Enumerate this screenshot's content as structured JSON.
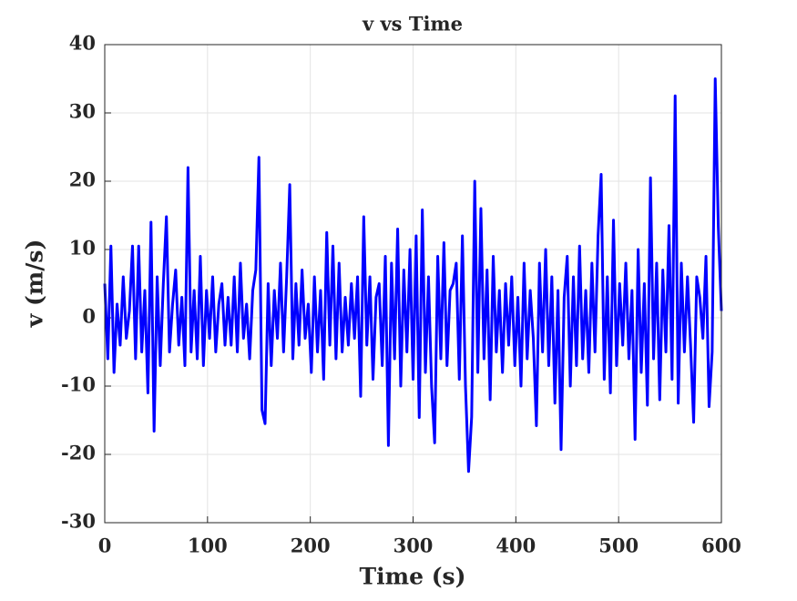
{
  "chart_data": {
    "type": "line",
    "title": "v vs Time",
    "xlabel": "Time (s)",
    "ylabel": "v (m/s)",
    "x": [
      0,
      3,
      6,
      9,
      12,
      15,
      18,
      21,
      24,
      27,
      30,
      33,
      36,
      39,
      42,
      45,
      48,
      51,
      54,
      57,
      60,
      63,
      66,
      69,
      72,
      75,
      78,
      81,
      84,
      87,
      90,
      93,
      96,
      99,
      102,
      105,
      108,
      111,
      114,
      117,
      120,
      123,
      126,
      129,
      132,
      135,
      138,
      141,
      144,
      147,
      150,
      153,
      156,
      159,
      162,
      165,
      168,
      171,
      174,
      177,
      180,
      183,
      186,
      189,
      192,
      195,
      198,
      201,
      204,
      207,
      210,
      213,
      216,
      219,
      222,
      225,
      228,
      231,
      234,
      237,
      240,
      243,
      246,
      249,
      252,
      255,
      258,
      261,
      264,
      267,
      270,
      273,
      276,
      279,
      282,
      285,
      288,
      291,
      294,
      297,
      300,
      303,
      306,
      309,
      312,
      315,
      318,
      321,
      324,
      327,
      330,
      333,
      336,
      339,
      342,
      345,
      348,
      351,
      354,
      357,
      360,
      363,
      366,
      369,
      372,
      375,
      378,
      381,
      384,
      387,
      390,
      393,
      396,
      399,
      402,
      405,
      408,
      411,
      414,
      417,
      420,
      423,
      426,
      429,
      432,
      435,
      438,
      441,
      444,
      447,
      450,
      453,
      456,
      459,
      462,
      465,
      468,
      471,
      474,
      477,
      480,
      483,
      486,
      489,
      492,
      495,
      498,
      501,
      504,
      507,
      510,
      513,
      516,
      519,
      522,
      525,
      528,
      531,
      534,
      537,
      540,
      543,
      546,
      549,
      552,
      555,
      558,
      561,
      564,
      567,
      570,
      573,
      576,
      579,
      582,
      585,
      588,
      591,
      594,
      597,
      600
    ],
    "series": [
      {
        "name": "v",
        "color": "#0000ff",
        "values": [
          5,
          -6,
          10.5,
          -8,
          2,
          -4,
          6,
          -3,
          1,
          10.5,
          -6,
          10.5,
          -5,
          4,
          -11,
          14,
          -16.6,
          6,
          -7,
          5,
          14.8,
          -5,
          2,
          7,
          -4,
          3,
          -7,
          22,
          -5,
          4,
          -6,
          9,
          -7,
          4,
          -3,
          6,
          -5,
          2,
          5,
          -4,
          3,
          -4,
          6,
          -5,
          8,
          -3,
          2,
          -6,
          4,
          7,
          23.5,
          -13.5,
          -15.5,
          5,
          -7,
          4,
          -3,
          8,
          -5,
          6,
          19.5,
          -6,
          5,
          -4,
          7,
          -3,
          2,
          -8,
          6,
          -5,
          4,
          -9,
          12.5,
          -4,
          10.5,
          -6,
          8,
          -5,
          3,
          -4,
          5,
          -3,
          6,
          -11.5,
          14.8,
          -4,
          6,
          -9,
          3,
          5,
          -7,
          9,
          -18.7,
          8,
          -6,
          13,
          -10,
          7,
          -5,
          10,
          -9,
          12,
          -14.6,
          15.8,
          -8,
          6,
          -10,
          -18.3,
          9,
          -6,
          11,
          -7,
          4,
          5,
          8,
          -9,
          12,
          -10,
          -22.5,
          -14.5,
          20,
          -8,
          16,
          -6,
          7,
          -12,
          9,
          -5,
          4,
          -8,
          5,
          -4,
          6,
          -7,
          3,
          -10,
          8,
          -6,
          4,
          -3,
          -15.8,
          8,
          -5,
          10,
          -7,
          6,
          -12.5,
          4,
          -19.3,
          3,
          9,
          -10,
          6,
          -7,
          10.5,
          -6,
          4,
          -8,
          8,
          -5,
          12,
          21,
          -9,
          6,
          -11,
          14.3,
          -7,
          5,
          -4,
          8,
          -6,
          4,
          -17.8,
          10,
          -8,
          5,
          -12.8,
          20.5,
          -6,
          8,
          -12,
          7,
          -5,
          13.5,
          -9,
          32.5,
          -12.5,
          8,
          -5,
          6,
          -4,
          -15.3,
          6,
          3,
          -3,
          9,
          -13,
          -5,
          35,
          13.3,
          1
        ]
      }
    ],
    "xlim": [
      0,
      600
    ],
    "ylim": [
      -30,
      40
    ],
    "xticks": [
      0,
      100,
      200,
      300,
      400,
      500,
      600
    ],
    "yticks": [
      -30,
      -20,
      -10,
      0,
      10,
      20,
      30,
      40
    ],
    "grid": true
  }
}
